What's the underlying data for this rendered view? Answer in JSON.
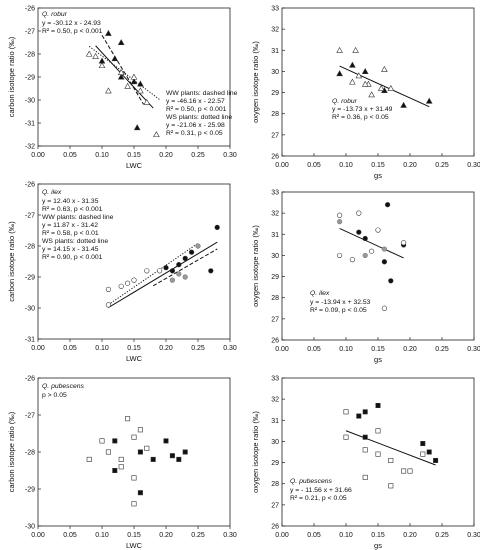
{
  "chart_data": [
    {
      "id": "robur-lwc",
      "type": "scatter",
      "xlabel": "LWC",
      "ylabel": "carbon isotope ratio (‰)",
      "xlim": [
        0.0,
        0.3
      ],
      "ylim": [
        -32,
        -26
      ],
      "xticks": [
        "0.00",
        "0.05",
        "0.10",
        "0.15",
        "0.20",
        "0.25",
        "0.30"
      ],
      "yticks": [
        "-32",
        "-31",
        "-30",
        "-29",
        "-28",
        "-27",
        "-26"
      ],
      "annotations": [
        {
          "text": "Q. robur",
          "italic": true
        },
        {
          "text": "y = -30.12 x - 24.93"
        },
        {
          "text": "R² = 0.50, p < 0.001"
        }
      ],
      "annotations2": [
        {
          "text": "WW plants: dashed line"
        },
        {
          "text": "y = -46.16 x - 22.57"
        },
        {
          "text": "R² = 0.50, p < 0.001"
        },
        {
          "text": "WS plants: dotted line"
        },
        {
          "text": "y = -21.06 x - 25.98"
        },
        {
          "text": "R² = 0.31, p < 0.05"
        }
      ],
      "series": [
        {
          "marker": "triangle",
          "filled": true,
          "points": [
            [
              0.1,
              -28.3
            ],
            [
              0.11,
              -27.1
            ],
            [
              0.13,
              -27.5
            ],
            [
              0.12,
              -28.2
            ],
            [
              0.13,
              -29.0
            ],
            [
              0.15,
              -29.2
            ],
            [
              0.16,
              -29.3
            ],
            [
              0.155,
              -31.2
            ]
          ]
        },
        {
          "marker": "triangle",
          "filled": false,
          "points": [
            [
              0.08,
              -28.0
            ],
            [
              0.09,
              -28.1
            ],
            [
              0.1,
              -28.5
            ],
            [
              0.11,
              -29.6
            ],
            [
              0.13,
              -28.8
            ],
            [
              0.14,
              -29.4
            ],
            [
              0.15,
              -29.0
            ],
            [
              0.16,
              -29.6
            ],
            [
              0.17,
              -30.1
            ],
            [
              0.185,
              -31.5
            ]
          ]
        }
      ],
      "lines": [
        {
          "style": "solid",
          "slope": -30.12,
          "intercept": -24.93,
          "x": [
            0.09,
            0.18
          ]
        },
        {
          "style": "dashed",
          "slope": -46.16,
          "intercept": -22.57,
          "x": [
            0.1,
            0.165
          ]
        },
        {
          "style": "dotted",
          "slope": -21.06,
          "intercept": -25.98,
          "x": [
            0.08,
            0.19
          ]
        }
      ]
    },
    {
      "id": "robur-gs",
      "type": "scatter",
      "xlabel": "gs",
      "ylabel": "oxygen isotope ratio (‰)",
      "xlim": [
        0.0,
        0.3
      ],
      "ylim": [
        26,
        33
      ],
      "xticks": [
        "0.00",
        "0.05",
        "0.10",
        "0.15",
        "0.20",
        "0.25",
        "0.30"
      ],
      "yticks": [
        "26",
        "27",
        "28",
        "29",
        "30",
        "31",
        "32",
        "33"
      ],
      "annotations": [
        {
          "text": "Q. robur",
          "italic": true
        },
        {
          "text": "y = -13.73 x + 31.49"
        },
        {
          "text": "R² = 0.36, p < 0.05"
        }
      ],
      "series": [
        {
          "marker": "triangle",
          "filled": true,
          "points": [
            [
              0.09,
              29.9
            ],
            [
              0.11,
              30.3
            ],
            [
              0.13,
              30.0
            ],
            [
              0.16,
              29.1
            ],
            [
              0.19,
              28.4
            ],
            [
              0.23,
              28.6
            ]
          ]
        },
        {
          "marker": "triangle",
          "filled": false,
          "points": [
            [
              0.09,
              31.0
            ],
            [
              0.115,
              31.0
            ],
            [
              0.11,
              29.5
            ],
            [
              0.12,
              29.8
            ],
            [
              0.135,
              29.4
            ],
            [
              0.14,
              28.9
            ],
            [
              0.155,
              29.2
            ],
            [
              0.16,
              30.1
            ],
            [
              0.17,
              29.2
            ],
            [
              0.13,
              29.4
            ]
          ]
        }
      ],
      "lines": [
        {
          "style": "solid",
          "slope": -13.73,
          "intercept": 31.49,
          "x": [
            0.09,
            0.23
          ]
        }
      ]
    },
    {
      "id": "ilex-lwc",
      "type": "scatter",
      "xlabel": "LWC",
      "ylabel": "carbon isotope ratio (‰)",
      "xlim": [
        0.0,
        0.3
      ],
      "ylim": [
        -31,
        -26
      ],
      "xticks": [
        "0.00",
        "0.05",
        "0.10",
        "0.15",
        "0.20",
        "0.25",
        "0.30"
      ],
      "yticks": [
        "-31",
        "-30",
        "-29",
        "-28",
        "-27",
        "-26"
      ],
      "annotations": [
        {
          "text": "Q. ilex",
          "italic": true
        },
        {
          "text": "y = 12.40 x - 31.35"
        },
        {
          "text": "R² = 0.63, p < 0.001"
        },
        {
          "text": "WW plants: dashed line"
        },
        {
          "text": "y = 11.87 x - 31.42"
        },
        {
          "text": "R² = 0.58, p < 0.01"
        },
        {
          "text": "WS plants: dotted line"
        },
        {
          "text": "y = 14.15 x - 31.45"
        },
        {
          "text": "R² = 0.90, p < 0.001"
        }
      ],
      "series": [
        {
          "marker": "circle",
          "filled": true,
          "points": [
            [
              0.2,
              -28.7
            ],
            [
              0.21,
              -28.8
            ],
            [
              0.22,
              -28.6
            ],
            [
              0.23,
              -28.4
            ],
            [
              0.24,
              -28.2
            ],
            [
              0.27,
              -28.8
            ],
            [
              0.28,
              -27.4
            ]
          ]
        },
        {
          "marker": "circle",
          "filled": false,
          "points": [
            [
              0.11,
              -29.4
            ],
            [
              0.11,
              -29.9
            ],
            [
              0.13,
              -29.3
            ],
            [
              0.14,
              -29.2
            ],
            [
              0.15,
              -29.1
            ],
            [
              0.17,
              -28.8
            ],
            [
              0.19,
              -28.8
            ]
          ]
        },
        {
          "marker": "circle",
          "filled": "grey",
          "points": [
            [
              0.21,
              -29.1
            ],
            [
              0.22,
              -28.9
            ],
            [
              0.23,
              -29.0
            ],
            [
              0.25,
              -28.0
            ]
          ]
        }
      ],
      "lines": [
        {
          "style": "solid",
          "slope": 12.4,
          "intercept": -31.35,
          "x": [
            0.11,
            0.28
          ]
        },
        {
          "style": "dashed",
          "slope": 11.87,
          "intercept": -31.42,
          "x": [
            0.18,
            0.28
          ]
        },
        {
          "style": "dotted",
          "slope": 14.15,
          "intercept": -31.45,
          "x": [
            0.11,
            0.25
          ]
        }
      ]
    },
    {
      "id": "ilex-gs",
      "type": "scatter",
      "xlabel": "gs",
      "ylabel": "oxygen isotope ratio (‰)",
      "xlim": [
        0.0,
        0.3
      ],
      "ylim": [
        26,
        33
      ],
      "xticks": [
        "0.00",
        "0.05",
        "0.10",
        "0.15",
        "0.20",
        "0.25",
        "0.30"
      ],
      "yticks": [
        "26",
        "27",
        "28",
        "29",
        "30",
        "31",
        "32",
        "33"
      ],
      "annotations": [
        {
          "text": "Q. ilex",
          "italic": true
        },
        {
          "text": "y = -13.94 x + 32.53"
        },
        {
          "text": "R² = 0.09, p < 0.05"
        }
      ],
      "series": [
        {
          "marker": "circle",
          "filled": true,
          "points": [
            [
              0.12,
              31.1
            ],
            [
              0.13,
              30.8
            ],
            [
              0.16,
              29.7
            ],
            [
              0.165,
              32.4
            ],
            [
              0.17,
              28.8
            ],
            [
              0.19,
              30.5
            ]
          ]
        },
        {
          "marker": "circle",
          "filled": false,
          "points": [
            [
              0.09,
              31.9
            ],
            [
              0.09,
              30.0
            ],
            [
              0.11,
              29.8
            ],
            [
              0.12,
              32.0
            ],
            [
              0.14,
              30.2
            ],
            [
              0.15,
              31.2
            ],
            [
              0.16,
              27.5
            ],
            [
              0.19,
              30.6
            ]
          ]
        },
        {
          "marker": "circle",
          "filled": "grey",
          "points": [
            [
              0.09,
              31.6
            ],
            [
              0.13,
              30.0
            ],
            [
              0.16,
              30.3
            ]
          ]
        }
      ],
      "lines": [
        {
          "style": "solid",
          "slope": -13.94,
          "intercept": 32.53,
          "x": [
            0.09,
            0.19
          ]
        }
      ]
    },
    {
      "id": "pubescens-lwc",
      "type": "scatter",
      "xlabel": "LWC",
      "ylabel": "carbon isotope ratio (‰)",
      "xlim": [
        0.0,
        0.3
      ],
      "ylim": [
        -30,
        -26
      ],
      "xticks": [
        "0.00",
        "0.05",
        "0.10",
        "0.15",
        "0.20",
        "0.25",
        "0.30"
      ],
      "yticks": [
        "-30",
        "-29",
        "-28",
        "-27",
        "-26"
      ],
      "annotations": [
        {
          "text": "Q. pubescens",
          "italic": true
        },
        {
          "text": "p > 0.05"
        }
      ],
      "series": [
        {
          "marker": "square",
          "filled": true,
          "points": [
            [
              0.12,
              -27.7
            ],
            [
              0.12,
              -28.5
            ],
            [
              0.16,
              -28.0
            ],
            [
              0.16,
              -29.1
            ],
            [
              0.18,
              -28.2
            ],
            [
              0.2,
              -27.7
            ],
            [
              0.21,
              -28.1
            ],
            [
              0.22,
              -28.2
            ],
            [
              0.23,
              -28.0
            ]
          ]
        },
        {
          "marker": "square",
          "filled": false,
          "points": [
            [
              0.08,
              -28.2
            ],
            [
              0.1,
              -27.7
            ],
            [
              0.11,
              -28.0
            ],
            [
              0.13,
              -28.2
            ],
            [
              0.14,
              -27.1
            ],
            [
              0.15,
              -27.6
            ],
            [
              0.15,
              -28.7
            ],
            [
              0.15,
              -29.4
            ],
            [
              0.16,
              -27.4
            ],
            [
              0.17,
              -27.9
            ],
            [
              0.13,
              -28.4
            ]
          ]
        }
      ],
      "lines": []
    },
    {
      "id": "pubescens-gs",
      "type": "scatter",
      "xlabel": "gs",
      "ylabel": "oxygen isotope ratio (‰)",
      "xlim": [
        0.0,
        0.3
      ],
      "ylim": [
        26,
        33
      ],
      "xticks": [
        "0.00",
        "0.05",
        "0.10",
        "0.15",
        "0.20",
        "0.25",
        "0.30"
      ],
      "yticks": [
        "26",
        "27",
        "28",
        "29",
        "30",
        "31",
        "32",
        "33"
      ],
      "annotations": [
        {
          "text": "Q. pubescens",
          "italic": true
        },
        {
          "text": "y = - 11.56 x + 31.66"
        },
        {
          "text": "R² = 0.21, p < 0.05"
        }
      ],
      "series": [
        {
          "marker": "square",
          "filled": true,
          "points": [
            [
              0.12,
              31.2
            ],
            [
              0.13,
              31.4
            ],
            [
              0.15,
              31.7
            ],
            [
              0.13,
              30.2
            ],
            [
              0.22,
              29.9
            ],
            [
              0.23,
              29.5
            ],
            [
              0.24,
              29.1
            ]
          ]
        },
        {
          "marker": "square",
          "filled": false,
          "points": [
            [
              0.1,
              31.4
            ],
            [
              0.1,
              30.2
            ],
            [
              0.13,
              29.6
            ],
            [
              0.13,
              28.3
            ],
            [
              0.15,
              29.4
            ],
            [
              0.15,
              30.5
            ],
            [
              0.17,
              29.1
            ],
            [
              0.17,
              27.9
            ],
            [
              0.19,
              28.6
            ],
            [
              0.2,
              28.6
            ],
            [
              0.22,
              29.4
            ]
          ]
        }
      ],
      "lines": [
        {
          "style": "solid",
          "slope": -11.56,
          "intercept": 31.66,
          "x": [
            0.1,
            0.24
          ]
        }
      ]
    }
  ]
}
